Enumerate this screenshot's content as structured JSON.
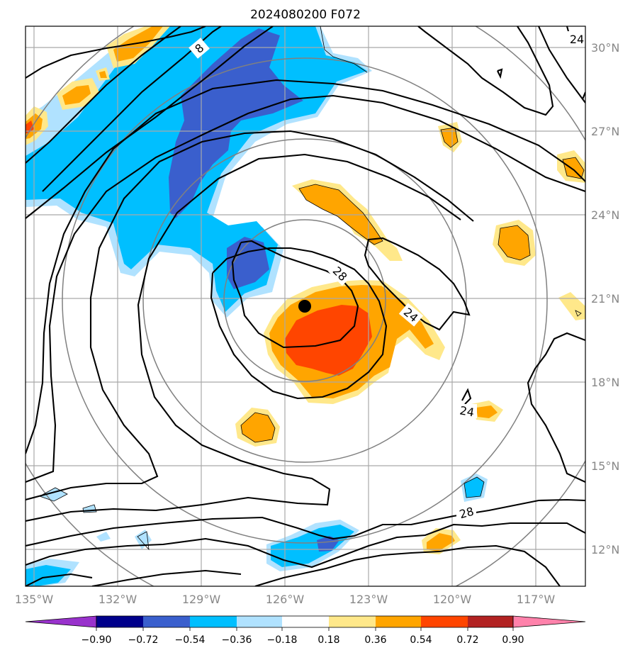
{
  "title": "2024080200 F072",
  "longitude_labels": [
    "135°W",
    "132°W",
    "129°W",
    "126°W",
    "123°W",
    "120°W",
    "117°W"
  ],
  "latitude_labels": [
    "30°N",
    "27°N",
    "24°N",
    "21°N",
    "18°N",
    "15°N",
    "12°N"
  ],
  "longitude_values": [
    -135,
    -132,
    -129,
    -126,
    -123,
    -120,
    -117
  ],
  "latitude_values": [
    30,
    27,
    24,
    21,
    18,
    15,
    12
  ],
  "map_extent": {
    "lon": [
      -135,
      -115
    ],
    "lat": [
      10.8,
      30.8
    ]
  },
  "storm_center": {
    "lon": -125.4,
    "lat": 20.8
  },
  "range_rings_deg": [
    3,
    6,
    9,
    12
  ],
  "contour_labels": [
    "8",
    "24",
    "28",
    "24",
    "24",
    "28"
  ],
  "colorbar": {
    "tick_labels": [
      "−0.90",
      "−0.72",
      "−0.54",
      "−0.36",
      "−0.18",
      "0.18",
      "0.36",
      "0.54",
      "0.72",
      "0.90"
    ],
    "bins": [
      {
        "color": "#9932cc"
      },
      {
        "color": "#00008b"
      },
      {
        "color": "#3a5fcd"
      },
      {
        "color": "#00bfff"
      },
      {
        "color": "#b0e2ff"
      },
      {
        "color": "#ffffff"
      },
      {
        "color": "#ffe88a"
      },
      {
        "color": "#ffa500"
      },
      {
        "color": "#ff4500"
      },
      {
        "color": "#b22222"
      },
      {
        "color": "#ff82ab"
      }
    ]
  }
}
